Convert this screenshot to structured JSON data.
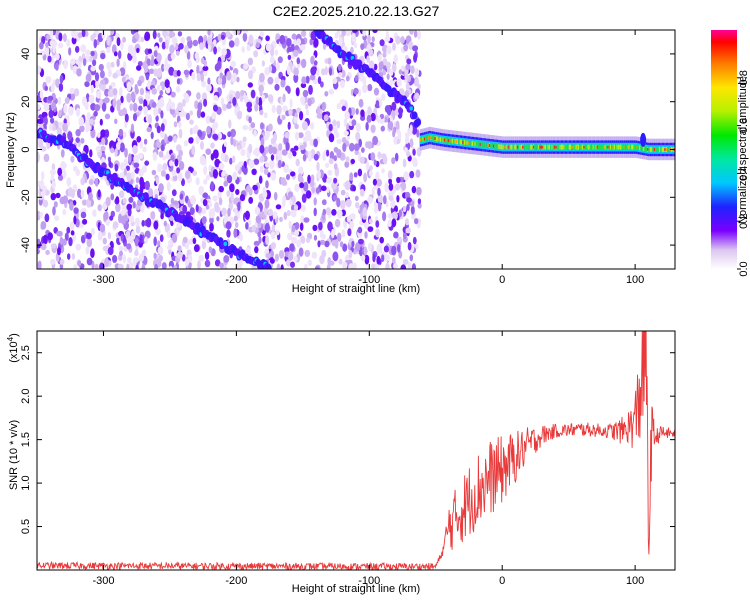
{
  "title": "C2E2.2025.210.22.13.G27",
  "chart_data": [
    {
      "type": "heatmap",
      "xlabel": "Height of straight line (km)",
      "ylabel": "Frequency (Hz)",
      "xlim": [
        -350,
        130
      ],
      "ylim": [
        -50,
        50
      ],
      "x_ticks": [
        -300,
        -200,
        -100,
        0,
        100
      ],
      "y_ticks": [
        -40,
        -20,
        0,
        20,
        40
      ],
      "occultation_cutoff_km": -62,
      "signal_track": [
        {
          "x": -350,
          "y": 7
        },
        {
          "x": -330,
          "y": 3
        },
        {
          "x": -310,
          "y": -6
        },
        {
          "x": -290,
          "y": -13
        },
        {
          "x": -270,
          "y": -20
        },
        {
          "x": -250,
          "y": -26
        },
        {
          "x": -230,
          "y": -33
        },
        {
          "x": -210,
          "y": -40
        },
        {
          "x": -190,
          "y": -46
        },
        {
          "x": -175,
          "y": -50
        }
      ],
      "upper_track": [
        {
          "x": -140,
          "y": 50
        },
        {
          "x": -120,
          "y": 40
        },
        {
          "x": -100,
          "y": 32
        },
        {
          "x": -85,
          "y": 25
        },
        {
          "x": -70,
          "y": 18
        },
        {
          "x": -63,
          "y": 10
        }
      ],
      "carrier_line": [
        {
          "x": -62,
          "y": 4
        },
        {
          "x": -55,
          "y": 5
        },
        {
          "x": -45,
          "y": 4
        },
        {
          "x": -30,
          "y": 3
        },
        {
          "x": -15,
          "y": 2
        },
        {
          "x": 0,
          "y": 1
        },
        {
          "x": 20,
          "y": 1
        },
        {
          "x": 60,
          "y": 1
        },
        {
          "x": 100,
          "y": 1
        },
        {
          "x": 110,
          "y": 0
        },
        {
          "x": 130,
          "y": 0
        }
      ],
      "colorbar": {
        "label": "Normalized spectral amplitude",
        "range": [
          0,
          1
        ],
        "ticks": [
          0.0,
          0.2,
          0.4,
          0.6,
          0.8
        ],
        "tick_labels": [
          "0.0",
          "0.2",
          "0.4",
          "0.6",
          "0.8"
        ]
      }
    },
    {
      "type": "line",
      "xlabel": "Height of straight line (km)",
      "ylabel": "SNR (10 * v/v)",
      "y_scale_note": "(x10",
      "y_scale_exp": "4",
      "y_scale_close": ")",
      "xlim": [
        -350,
        130
      ],
      "ylim": [
        0,
        2.75
      ],
      "x_ticks": [
        -300,
        -200,
        -100,
        0,
        100
      ],
      "y_ticks": [
        0.5,
        1.0,
        1.5,
        2.0,
        2.5
      ],
      "y_tick_labels": [
        "0.5",
        "1.0",
        "1.5",
        "2.0",
        "2.5"
      ],
      "series": [
        {
          "color": "#e83a3a",
          "points": [
            {
              "x": -350,
              "y": 0.05
            },
            {
              "x": -100,
              "y": 0.04
            },
            {
              "x": -50,
              "y": 0.04
            },
            {
              "x": -45,
              "y": 0.2
            },
            {
              "x": -40,
              "y": 0.5
            },
            {
              "x": -30,
              "y": 0.7
            },
            {
              "x": -20,
              "y": 0.9
            },
            {
              "x": -10,
              "y": 1.05
            },
            {
              "x": 0,
              "y": 1.15
            },
            {
              "x": 10,
              "y": 1.3
            },
            {
              "x": 20,
              "y": 1.45
            },
            {
              "x": 30,
              "y": 1.55
            },
            {
              "x": 40,
              "y": 1.6
            },
            {
              "x": 60,
              "y": 1.62
            },
            {
              "x": 80,
              "y": 1.6
            },
            {
              "x": 90,
              "y": 1.6
            },
            {
              "x": 100,
              "y": 1.7
            },
            {
              "x": 105,
              "y": 2.2
            },
            {
              "x": 108,
              "y": 2.7
            },
            {
              "x": 110,
              "y": 0.3
            },
            {
              "x": 112,
              "y": 1.5
            },
            {
              "x": 120,
              "y": 1.58
            },
            {
              "x": 130,
              "y": 1.57
            }
          ],
          "noise": [
            {
              "x": -45,
              "y": 0.04
            },
            {
              "x": -40,
              "y": 0.3
            },
            {
              "x": -30,
              "y": 0.4
            },
            {
              "x": -20,
              "y": 0.45
            },
            {
              "x": -10,
              "y": 0.45
            },
            {
              "x": 0,
              "y": 0.4
            },
            {
              "x": 10,
              "y": 0.3
            },
            {
              "x": 20,
              "y": 0.2
            },
            {
              "x": 30,
              "y": 0.12
            },
            {
              "x": 40,
              "y": 0.08
            },
            {
              "x": 80,
              "y": 0.08
            },
            {
              "x": 95,
              "y": 0.2
            },
            {
              "x": 100,
              "y": 0.35
            },
            {
              "x": 105,
              "y": 0.8
            },
            {
              "x": 110,
              "y": 0.8
            },
            {
              "x": 115,
              "y": 0.1
            },
            {
              "x": 130,
              "y": 0.05
            }
          ]
        }
      ]
    }
  ]
}
